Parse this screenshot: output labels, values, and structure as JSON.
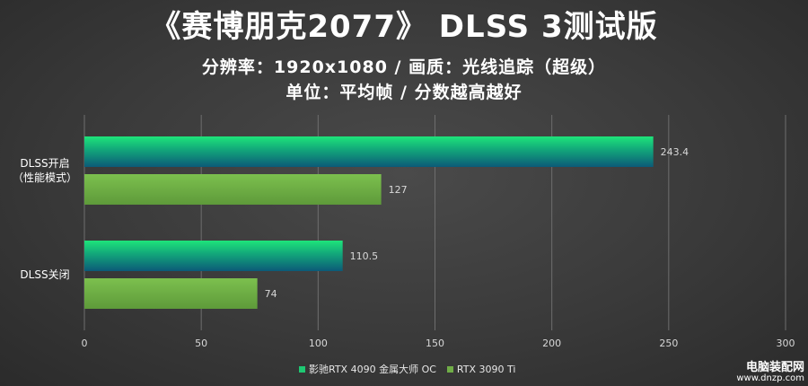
{
  "header": {
    "title": "《赛博朋克2077》 DLSS 3测试版",
    "subtitle1": "分辨率：1920x1080 / 画质：光线追踪（超级）",
    "subtitle2": "单位：平均帧 / 分数越高越好"
  },
  "chart_data": {
    "type": "bar",
    "orientation": "horizontal",
    "categories": [
      "DLSS开启\n（性能模式）",
      "DLSS关闭"
    ],
    "series": [
      {
        "name": "影驰RTX 4090 金属大师 OC",
        "values": [
          243.4,
          110.5
        ],
        "color": "#1ec872"
      },
      {
        "name": "RTX 3090 Ti",
        "values": [
          127,
          74
        ],
        "color": "#70ad47"
      }
    ],
    "xlim": [
      0,
      300
    ],
    "xticks": [
      0,
      50,
      100,
      150,
      200,
      250,
      300
    ],
    "grid": true,
    "legend": "bottom"
  },
  "legend": {
    "items": [
      {
        "label": "影驰RTX 4090 金属大师 OC",
        "color": "#1ec872"
      },
      {
        "label": "RTX 3090 Ti",
        "color": "#70ad47"
      }
    ]
  },
  "watermark": {
    "line1": "电脑装配网",
    "line2": "www.dnzp.com"
  }
}
